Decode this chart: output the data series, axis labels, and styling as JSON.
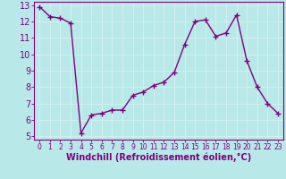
{
  "x": [
    0,
    1,
    2,
    3,
    4,
    5,
    6,
    7,
    8,
    9,
    10,
    11,
    12,
    13,
    14,
    15,
    16,
    17,
    18,
    19,
    20,
    21,
    22,
    23
  ],
  "y": [
    12.9,
    12.3,
    12.2,
    11.9,
    5.2,
    6.3,
    6.4,
    6.6,
    6.6,
    7.5,
    7.7,
    8.1,
    8.3,
    8.9,
    10.6,
    12.0,
    12.1,
    11.1,
    11.3,
    12.4,
    9.6,
    8.0,
    7.0,
    6.4
  ],
  "xlim": [
    -0.5,
    23.5
  ],
  "ylim": [
    4.8,
    13.2
  ],
  "yticks": [
    5,
    6,
    7,
    8,
    9,
    10,
    11,
    12,
    13
  ],
  "xticks": [
    0,
    1,
    2,
    3,
    4,
    5,
    6,
    7,
    8,
    9,
    10,
    11,
    12,
    13,
    14,
    15,
    16,
    17,
    18,
    19,
    20,
    21,
    22,
    23
  ],
  "xlabel": "Windchill (Refroidissement éolien,°C)",
  "line_color": "#800080",
  "marker": "+",
  "bg_color": "#b8e8e8",
  "grid_color": "#d0f0f0",
  "xlabel_color": "#800080",
  "tick_color": "#800080",
  "spine_color": "#800080",
  "marker_size": 4,
  "linewidth": 1.0,
  "xlabel_fontsize": 7.0,
  "ytick_fontsize": 7,
  "xtick_fontsize": 5.5
}
